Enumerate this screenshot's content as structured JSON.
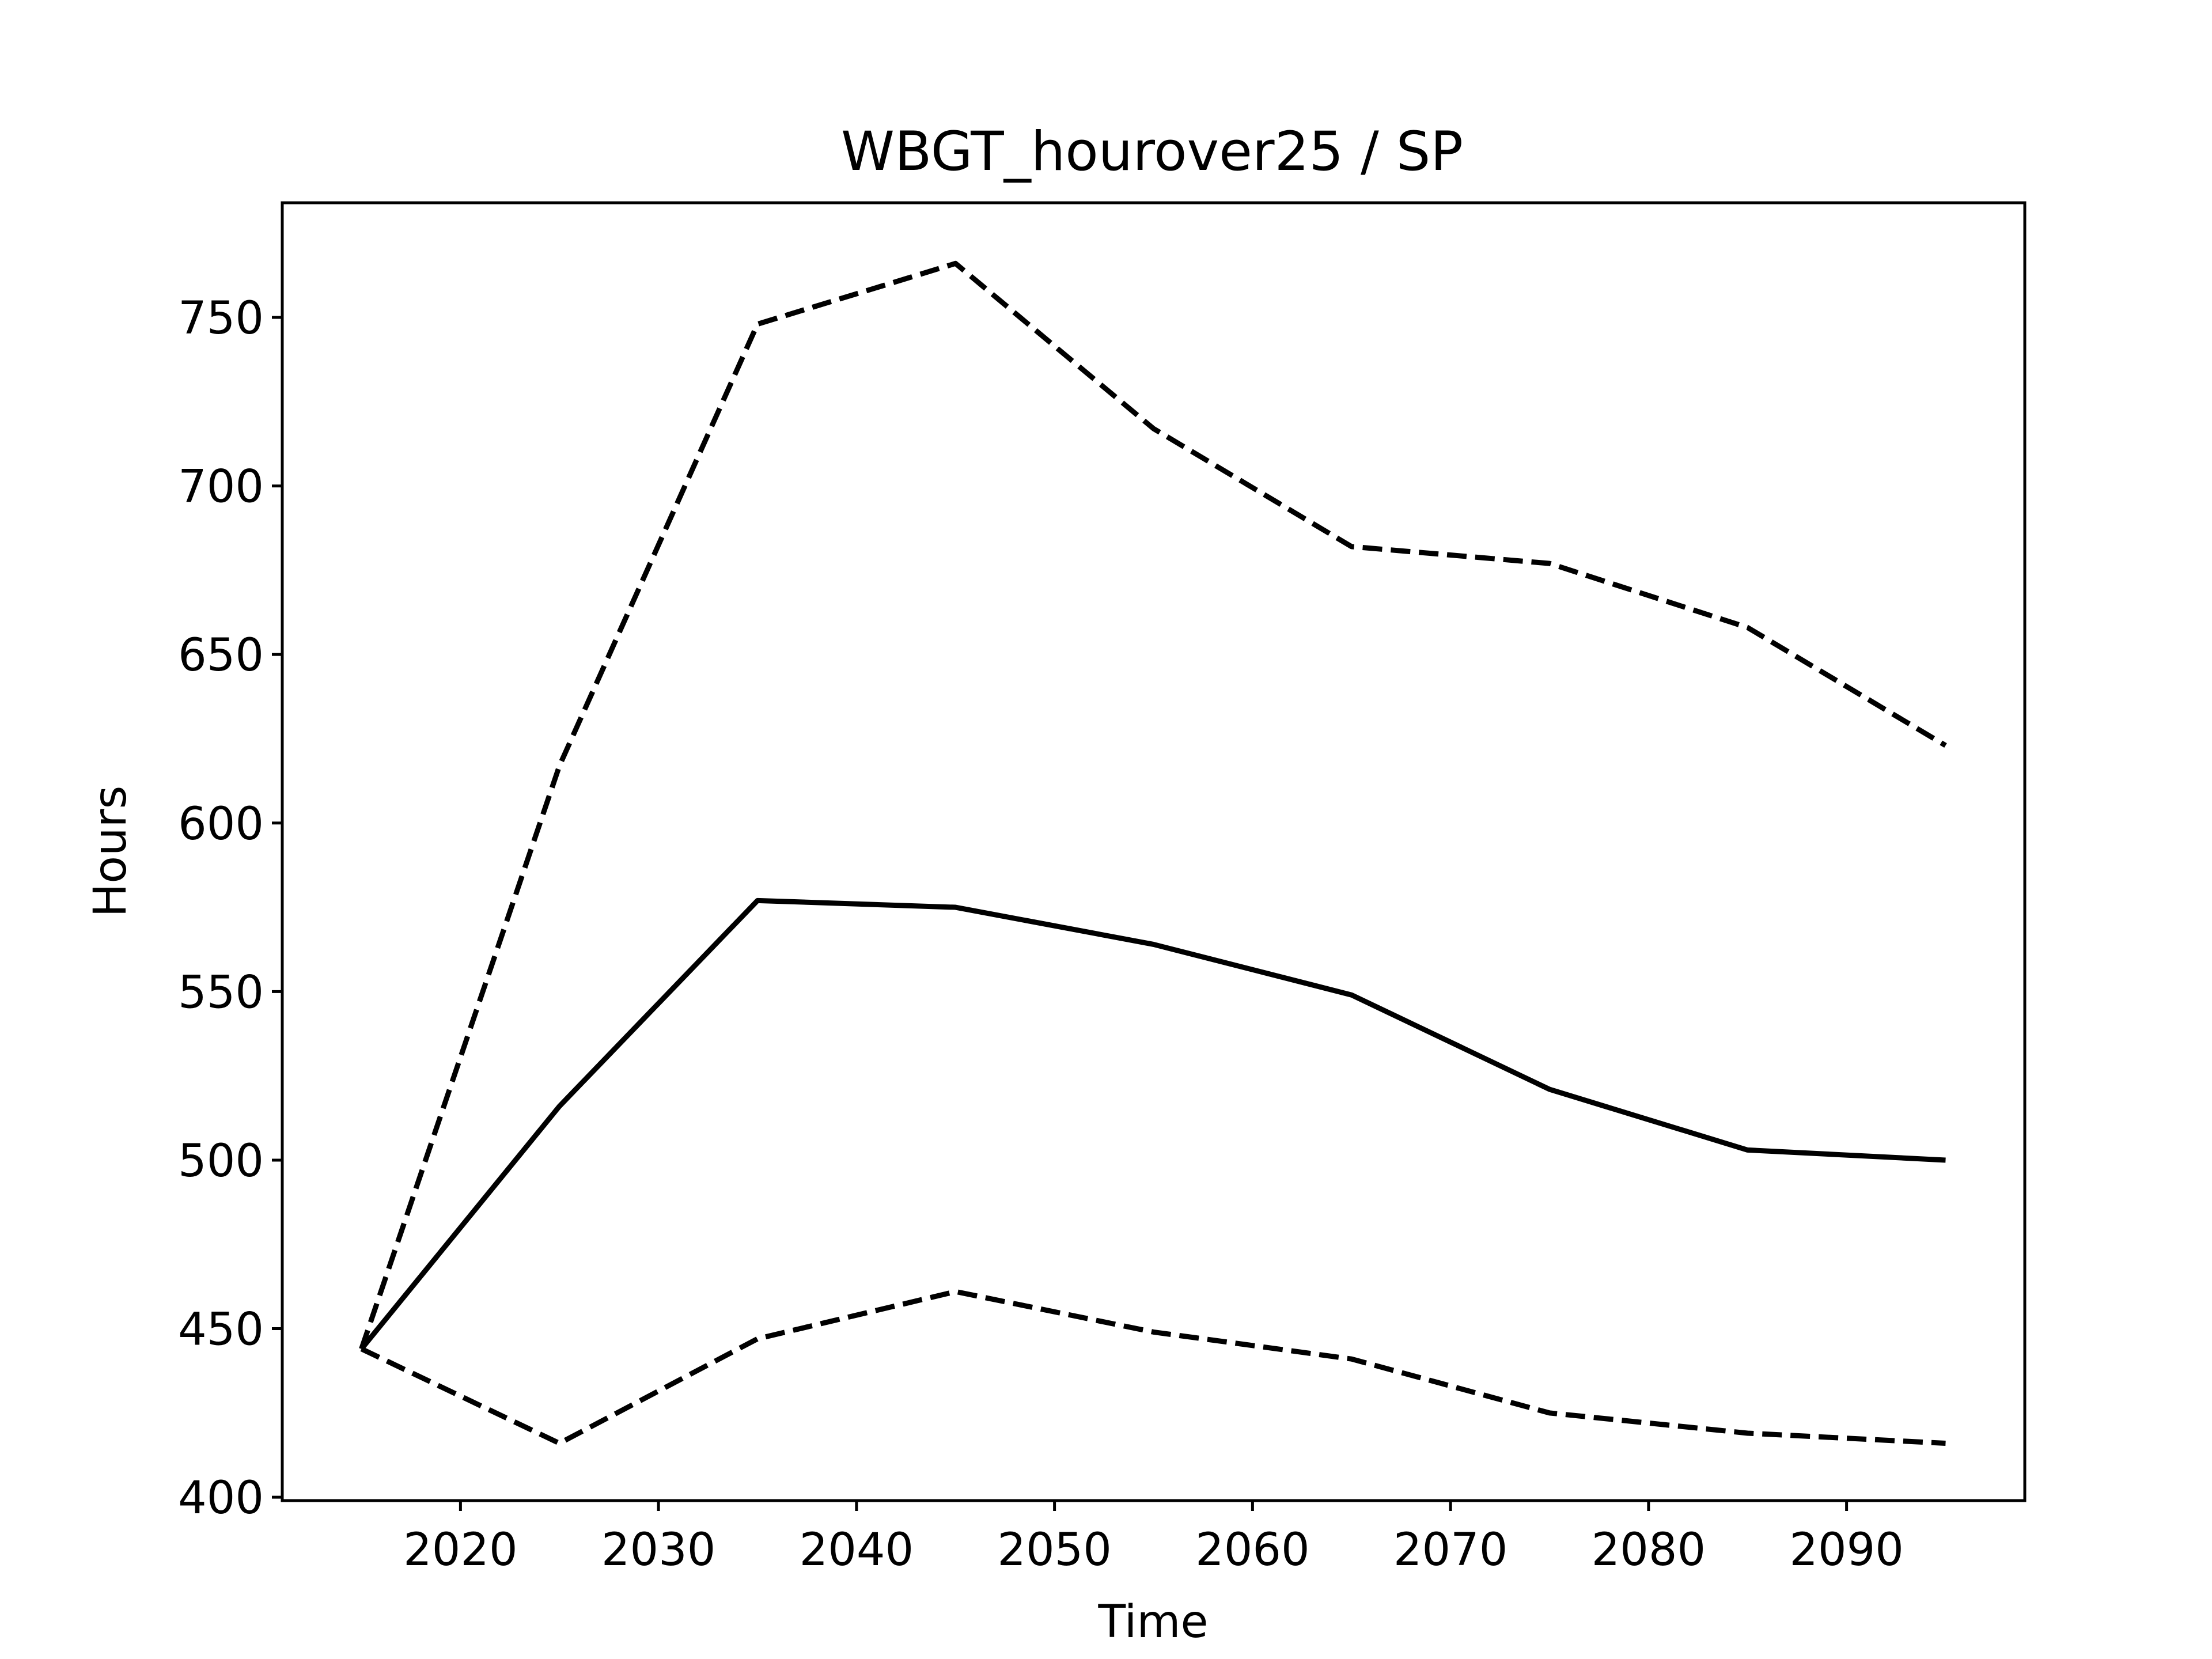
{
  "chart_data": {
    "type": "line",
    "title": "WBGT_hourover25 / SP",
    "xlabel": "Time",
    "ylabel": "Hours",
    "x": [
      2015,
      2025,
      2035,
      2045,
      2055,
      2065,
      2075,
      2085,
      2095
    ],
    "xlim": [
      2011,
      2099
    ],
    "ylim": [
      399,
      784
    ],
    "xticks": [
      2020,
      2030,
      2040,
      2050,
      2060,
      2070,
      2080,
      2090
    ],
    "yticks": [
      400,
      450,
      500,
      550,
      600,
      650,
      700,
      750
    ],
    "grid": false,
    "series": [
      {
        "style": "dashed",
        "color": "#000000",
        "values": [
          444,
          617,
          748,
          766,
          717,
          682,
          677,
          658,
          623
        ]
      },
      {
        "style": "solid",
        "color": "#000000",
        "values": [
          444,
          516,
          577,
          575,
          564,
          549,
          521,
          503,
          500
        ]
      },
      {
        "style": "dashed",
        "color": "#000000",
        "values": [
          444,
          416,
          447,
          461,
          449,
          441,
          425,
          419,
          416
        ]
      }
    ]
  }
}
